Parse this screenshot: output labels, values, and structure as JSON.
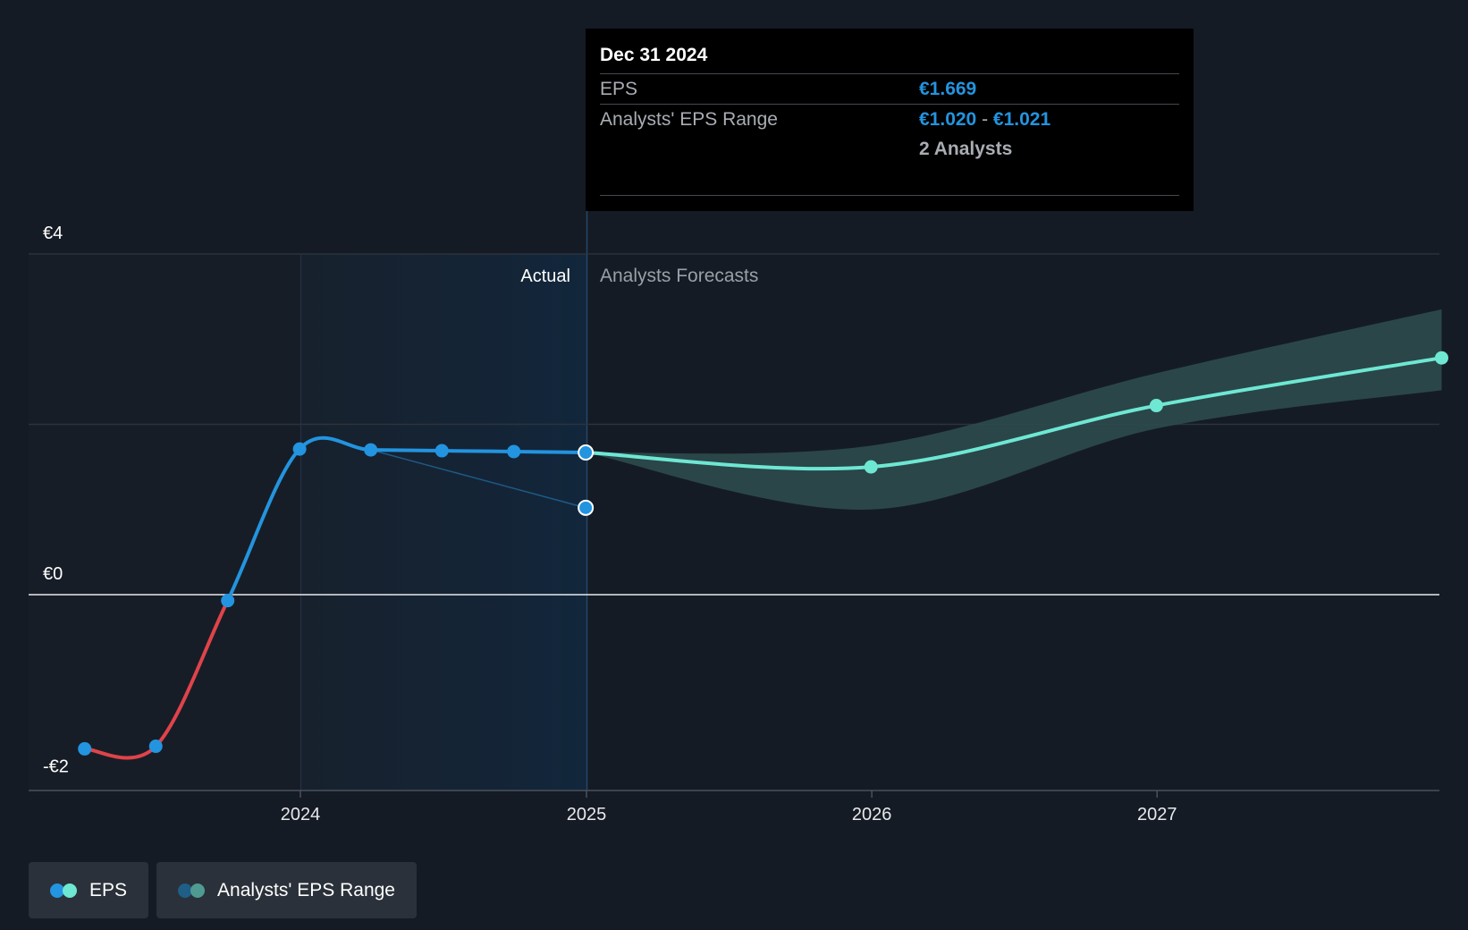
{
  "chart_data": {
    "type": "line",
    "x_ticks": [
      "2024",
      "2025",
      "2026",
      "2027"
    ],
    "y_ticks": [
      "€4",
      "€0",
      "-€2"
    ],
    "ylim": [
      -2,
      4
    ],
    "period_labels": {
      "actual": "Actual",
      "forecast": "Analysts Forecasts"
    },
    "series": [
      {
        "name": "EPS",
        "role": "actual",
        "points": [
          {
            "x": "2023-03-31",
            "y": -1.81
          },
          {
            "x": "2023-06-30",
            "y": -1.78
          },
          {
            "x": "2023-09-30",
            "y": -0.07
          },
          {
            "x": "2023-12-31",
            "y": 1.71
          },
          {
            "x": "2024-03-31",
            "y": 1.7
          },
          {
            "x": "2024-06-30",
            "y": 1.69
          },
          {
            "x": "2024-09-30",
            "y": 1.68
          },
          {
            "x": "2024-12-31",
            "y": 1.669
          }
        ]
      },
      {
        "name": "EPS",
        "role": "forecast",
        "points": [
          {
            "x": "2024-12-31",
            "y": 1.669
          },
          {
            "x": "2025-12-31",
            "y": 1.5
          },
          {
            "x": "2026-12-31",
            "y": 2.22
          },
          {
            "x": "2027-12-31",
            "y": 2.78
          }
        ]
      },
      {
        "name": "Analysts' EPS Range",
        "role": "range",
        "points": [
          {
            "x": "2024-12-31",
            "low": 1.669,
            "high": 1.669
          },
          {
            "x": "2025-12-31",
            "low": 1.0,
            "high": 1.75
          },
          {
            "x": "2026-12-31",
            "low": 1.95,
            "high": 2.6
          },
          {
            "x": "2027-12-31",
            "low": 2.4,
            "high": 3.35
          }
        ]
      },
      {
        "name": "Analysts' EPS estimate",
        "role": "past-estimate",
        "points": [
          {
            "x": "2024-03-31",
            "y": 1.7
          },
          {
            "x": "2024-12-31",
            "y": 1.02
          }
        ]
      }
    ],
    "tooltip": {
      "date": "Dec 31 2024",
      "eps_label": "EPS",
      "eps_value": "€1.669",
      "range_label": "Analysts' EPS Range",
      "range_low": "€1.020",
      "range_high": "€1.021",
      "analysts": "2 Analysts"
    },
    "legend": [
      {
        "label": "EPS",
        "colors": [
          "#2394df",
          "#6ee7d3"
        ]
      },
      {
        "label": "Analysts' EPS Range",
        "colors": [
          "#1f5e86",
          "#4f9b92"
        ]
      }
    ],
    "colors": {
      "actual": "#2394df",
      "negative": "#e0434a",
      "forecast": "#6ee7d3",
      "range_fill": "#2e4e4f",
      "background": "#151b24",
      "tooltip_bg": "#000000"
    }
  }
}
